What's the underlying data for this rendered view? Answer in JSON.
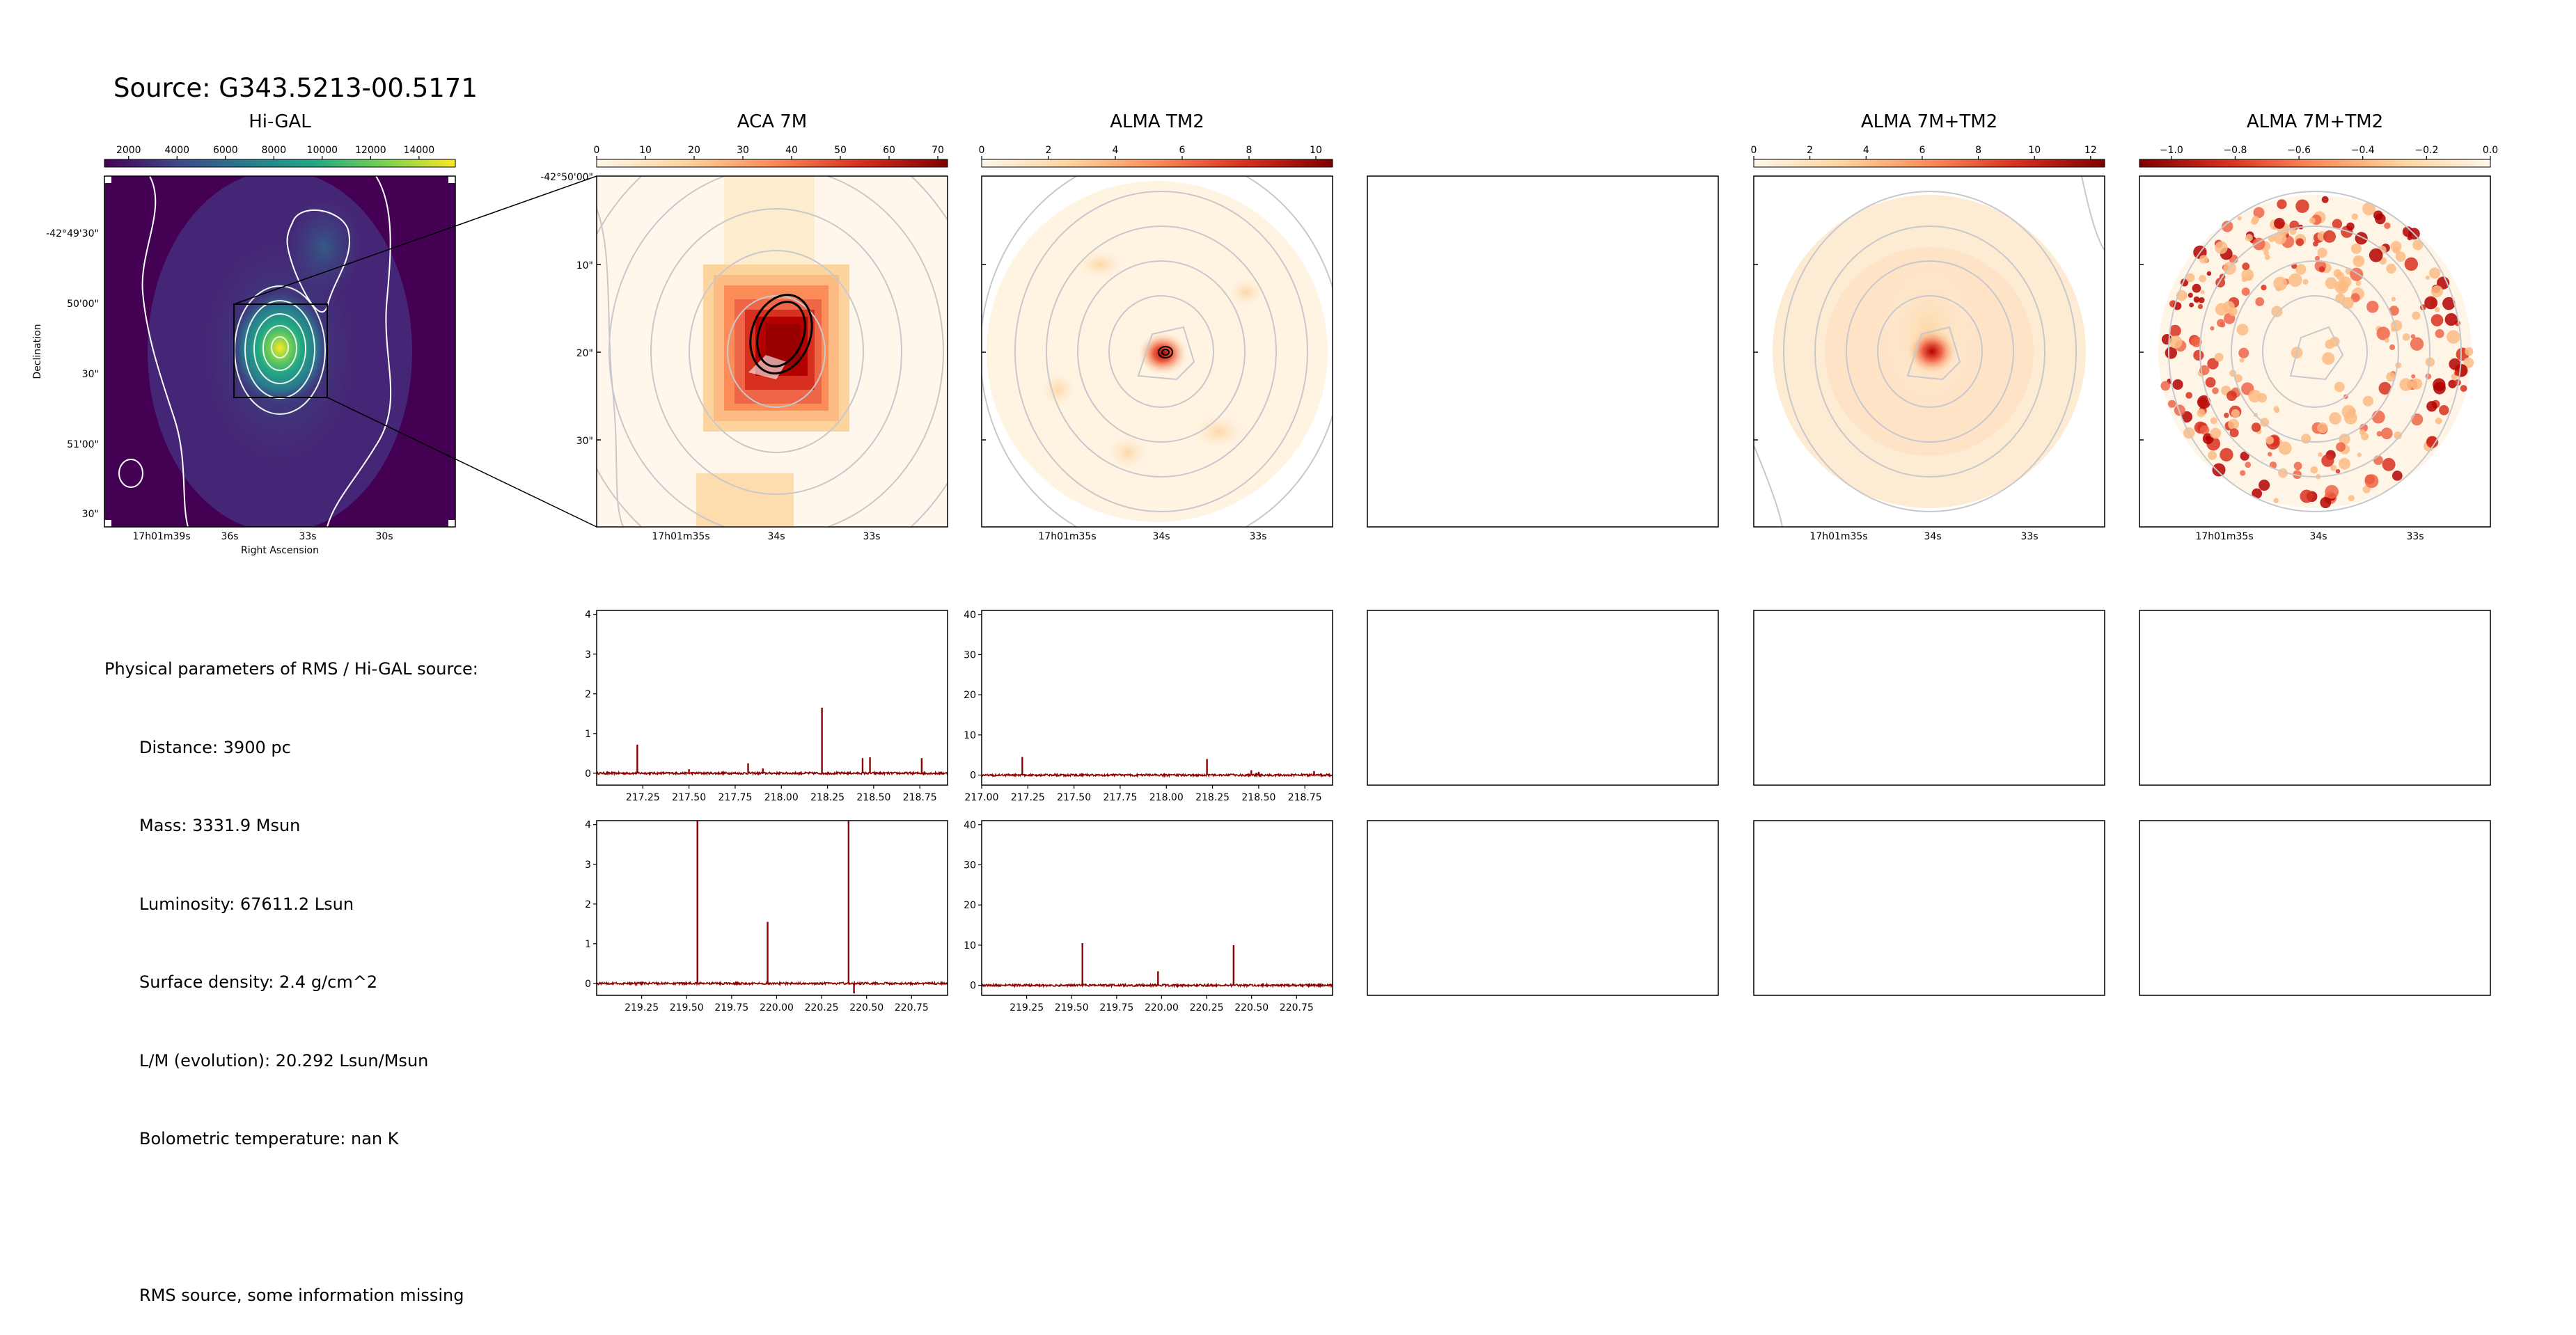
{
  "title": "Source: G343.5213-00.5171",
  "panels": [
    {
      "title": "Hi-GAL"
    },
    {
      "title": "ACA 7M"
    },
    {
      "title": "ALMA TM2"
    },
    {
      "title": ""
    },
    {
      "title": "ALMA 7M+TM2"
    },
    {
      "title": "ALMA 7M+TM2"
    }
  ],
  "colorbars": [
    {
      "panel": 0,
      "ticks": [
        "2000",
        "4000",
        "6000",
        "8000",
        "10000",
        "12000",
        "14000"
      ],
      "values": [
        2000,
        4000,
        6000,
        8000,
        10000,
        12000,
        14000
      ],
      "range": [
        1000,
        15500
      ],
      "cmap": "viridis"
    },
    {
      "panel": 1,
      "ticks": [
        "0",
        "10",
        "20",
        "30",
        "40",
        "50",
        "60",
        "70"
      ],
      "values": [
        0,
        10,
        20,
        30,
        40,
        50,
        60,
        70
      ],
      "range": [
        0,
        72
      ],
      "cmap": "orrd"
    },
    {
      "panel": 2,
      "ticks": [
        "0",
        "2",
        "4",
        "6",
        "8",
        "10"
      ],
      "values": [
        0,
        2,
        4,
        6,
        8,
        10
      ],
      "range": [
        0,
        10.5
      ],
      "cmap": "orrd"
    },
    {
      "panel": 4,
      "ticks": [
        "0",
        "2",
        "4",
        "6",
        "8",
        "10",
        "12"
      ],
      "values": [
        0,
        2,
        4,
        6,
        8,
        10,
        12
      ],
      "range": [
        0,
        12.5
      ],
      "cmap": "orrd"
    },
    {
      "panel": 5,
      "ticks": [
        "−1.0",
        "−0.8",
        "−0.6",
        "−0.4",
        "−0.2",
        "0.0"
      ],
      "values": [
        -1.0,
        -0.8,
        -0.6,
        -0.4,
        -0.2,
        0.0
      ],
      "range": [
        -1.1,
        0.0
      ],
      "cmap": "orrd_r"
    }
  ],
  "higal_axes": {
    "yticks": [
      "-42°49'30\"",
      "50'00\"",
      "30\"",
      "51'00\"",
      "30\""
    ],
    "xticks": [
      "17h01m39s",
      "36s",
      "33s",
      "30s"
    ],
    "xlabel": "Right Ascension",
    "ylabel": "Declination"
  },
  "zoom_axes": {
    "ytick_top": "-42°50'00\"",
    "yticks": [
      "10\"",
      "20\"",
      "30\""
    ],
    "xticks": [
      "17h01m35s",
      "34s",
      "33s"
    ]
  },
  "params": {
    "heading": "Physical parameters of RMS / Hi-GAL source:",
    "lines": [
      "Distance: 3900 pc",
      "Mass: 3331.9 Msun",
      "Luminosity: 67611.2 Lsun",
      "Surface density: 2.4 g/cm^2",
      "L/M (evolution): 20.292 Lsun/Msun",
      "Bolometric temperature: nan K",
      "",
      "RMS source, some information missing"
    ]
  },
  "chart_data": [
    {
      "type": "line",
      "panel": "ACA 7M spectrum (row 1)",
      "x_range": [
        217.0,
        218.9
      ],
      "xticks": [
        217.25,
        217.5,
        217.75,
        218.0,
        218.25,
        218.5,
        218.75
      ],
      "xtick_labels": [
        "217.25",
        "217.50",
        "217.75",
        "218.00",
        "218.25",
        "218.50",
        "218.75"
      ],
      "ylim": [
        -0.3,
        4.1
      ],
      "yticks": [
        0,
        1,
        2,
        3,
        4
      ],
      "color": "#8b0000",
      "peaks": [
        [
          217.22,
          0.72
        ],
        [
          217.5,
          0.1
        ],
        [
          217.82,
          0.25
        ],
        [
          217.9,
          0.12
        ],
        [
          218.22,
          1.65
        ],
        [
          218.44,
          0.38
        ],
        [
          218.48,
          0.4
        ],
        [
          218.76,
          0.38
        ]
      ]
    },
    {
      "type": "line",
      "panel": "ALMA TM2 spectrum (row 1)",
      "x_range": [
        217.0,
        218.9
      ],
      "xticks": [
        217.0,
        217.25,
        217.5,
        217.75,
        218.0,
        218.25,
        218.5,
        218.75
      ],
      "xtick_labels": [
        "217.00",
        "217.25",
        "217.50",
        "217.75",
        "218.00",
        "218.25",
        "218.50",
        "218.75"
      ],
      "ylim": [
        -2.5,
        41
      ],
      "yticks": [
        0,
        10,
        20,
        30,
        40
      ],
      "color": "#8b0000",
      "peaks": [
        [
          217.22,
          4.5
        ],
        [
          218.22,
          4.0
        ],
        [
          218.46,
          1.2
        ],
        [
          218.5,
          0.8
        ],
        [
          218.8,
          1.0
        ]
      ]
    },
    {
      "type": "line",
      "panel": "ACA 7M spectrum (row 2)",
      "x_range": [
        219.0,
        220.95
      ],
      "xticks": [
        219.25,
        219.5,
        219.75,
        220.0,
        220.25,
        220.5,
        220.75
      ],
      "xtick_labels": [
        "219.25",
        "219.50",
        "219.75",
        "220.00",
        "220.25",
        "220.50",
        "220.75"
      ],
      "ylim": [
        -0.3,
        4.1
      ],
      "yticks": [
        0,
        1,
        2,
        3,
        4
      ],
      "color": "#8b0000",
      "peaks": [
        [
          219.56,
          4.1
        ],
        [
          219.95,
          1.55
        ],
        [
          220.4,
          4.1
        ],
        [
          220.43,
          -0.25
        ]
      ]
    },
    {
      "type": "line",
      "panel": "ALMA TM2 spectrum (row 2)",
      "x_range": [
        219.0,
        220.95
      ],
      "xticks": [
        219.25,
        219.5,
        219.75,
        220.0,
        220.25,
        220.5,
        220.75
      ],
      "xtick_labels": [
        "219.25",
        "219.50",
        "219.75",
        "220.00",
        "220.25",
        "220.50",
        "220.75"
      ],
      "ylim": [
        -2.5,
        41
      ],
      "yticks": [
        0,
        10,
        20,
        30,
        40
      ],
      "color": "#8b0000",
      "peaks": [
        [
          219.56,
          10.5
        ],
        [
          219.98,
          3.5
        ],
        [
          220.4,
          10.0
        ]
      ]
    }
  ]
}
